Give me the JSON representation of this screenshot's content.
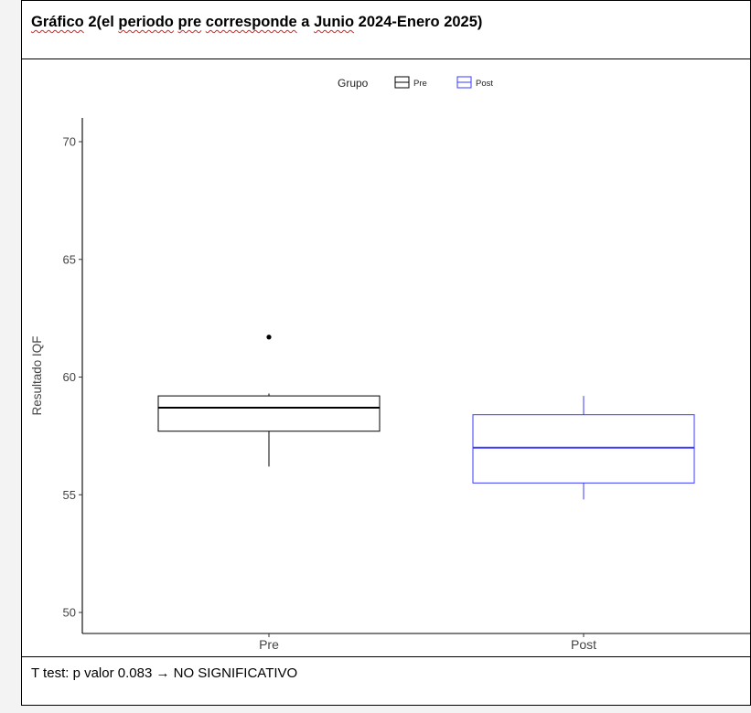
{
  "caption": {
    "parts": [
      "Gráfico",
      " 2(el ",
      "periodo",
      " ",
      "pre",
      " ",
      "corresponde",
      " a ",
      "Junio",
      " 2024-Enero 2025)"
    ],
    "misspelled_parts": [
      0,
      2,
      4,
      6,
      8
    ]
  },
  "footer": {
    "text": "T test: p valor 0.083 → NO SIGNIFICATIVO"
  },
  "chart_data": {
    "type": "box",
    "ylabel": "Resultado IQF",
    "ylim": [
      49,
      71
    ],
    "yticks": [
      50,
      55,
      60,
      65,
      70
    ],
    "categories": [
      "Pre",
      "Post"
    ],
    "legend": {
      "title": "Grupo",
      "placement": "top",
      "entries": [
        "Pre",
        "Post"
      ]
    },
    "grid": false,
    "series": [
      {
        "name": "Pre",
        "color": "#000000",
        "whisker_low": 56.2,
        "q1": 57.7,
        "median": 58.7,
        "q3": 59.2,
        "whisker_high": 59.3,
        "outliers": [
          61.7
        ]
      },
      {
        "name": "Post",
        "color": "#3b3bff",
        "whisker_low": 54.8,
        "q1": 55.5,
        "median": 57.0,
        "q3": 58.4,
        "whisker_high": 59.2,
        "outliers": []
      }
    ]
  }
}
